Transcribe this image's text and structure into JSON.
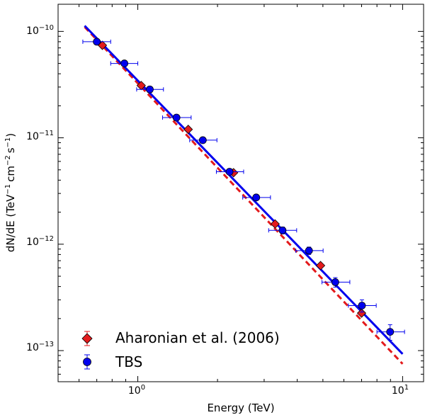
{
  "chart_data": {
    "type": "scatter",
    "xscale": "log",
    "yscale": "log",
    "xlabel": "Energy (TeV)",
    "ylabel": "dN/dE (TeV-1 cm-2 s-1)",
    "ylabel_parts": {
      "main": "dN/dE (TeV",
      "exp1": "−1",
      "mid1": "cm",
      "exp2": "−2",
      "mid2": "s",
      "exp3": "−1",
      "end": ")"
    },
    "xlim": [
      0.5,
      12
    ],
    "ylim": [
      5.1e-14,
      1.8e-10
    ],
    "xticks": [
      {
        "value": 1,
        "base": "10",
        "exp": "0"
      },
      {
        "value": 10,
        "base": "10",
        "exp": "1"
      }
    ],
    "yticks": [
      {
        "value": 1e-10,
        "base": "10",
        "exp": "−10"
      },
      {
        "value": 1e-11,
        "base": "10",
        "exp": "−11"
      },
      {
        "value": 1e-12,
        "base": "10",
        "exp": "−12"
      },
      {
        "value": 1e-13,
        "base": "10",
        "exp": "−13"
      }
    ],
    "legend_position": "bottom-left",
    "series": [
      {
        "name": "Aharonian et al. (2006)",
        "marker": "diamond",
        "color": "#e31a1c",
        "x": [
          0.735,
          1.03,
          1.55,
          2.3,
          3.3,
          4.9,
          7.0
        ],
        "y": [
          7.4e-11,
          3.1e-11,
          1.2e-11,
          4.7e-12,
          1.55e-12,
          6.3e-13,
          2.25e-13
        ],
        "fit": {
          "x": [
            0.63,
            10
          ],
          "y": [
            1.1e-10,
            7.5e-14
          ],
          "style": "dashed"
        }
      },
      {
        "name": "TBS",
        "marker": "circle",
        "color": "#0000ee",
        "x": [
          0.7,
          0.89,
          1.11,
          1.4,
          1.76,
          2.22,
          2.8,
          3.52,
          4.43,
          5.57,
          7.02,
          8.97
        ],
        "y": [
          8e-11,
          5e-11,
          2.85e-11,
          1.55e-11,
          9.5e-12,
          4.8e-12,
          2.75e-12,
          1.35e-12,
          8.7e-13,
          4.4e-13,
          2.65e-13,
          1.5e-13
        ],
        "xerr_lo": [
          0.08,
          0.1,
          0.12,
          0.16,
          0.19,
          0.24,
          0.31,
          0.4,
          0.48,
          0.61,
          0.78,
          0.97
        ],
        "xerr_hi": [
          0.09,
          0.11,
          0.14,
          0.19,
          0.23,
          0.29,
          0.37,
          0.46,
          0.58,
          0.75,
          0.93,
          1.2
        ],
        "yerr_lo": [
          3e-12,
          2e-12,
          1.2e-12,
          8e-13,
          5e-13,
          2.5e-13,
          1.5e-13,
          1e-13,
          7e-14,
          4.5e-14,
          3.5e-14,
          2.5e-14
        ],
        "yerr_hi": [
          3e-12,
          2e-12,
          1.2e-12,
          8e-13,
          5e-13,
          2.5e-13,
          1.5e-13,
          1e-13,
          7e-14,
          4.5e-14,
          3.5e-14,
          2.5e-14
        ],
        "fit": {
          "x": [
            0.63,
            10
          ],
          "y": [
            1.13e-10,
            9.3e-14
          ],
          "style": "solid"
        }
      }
    ]
  }
}
